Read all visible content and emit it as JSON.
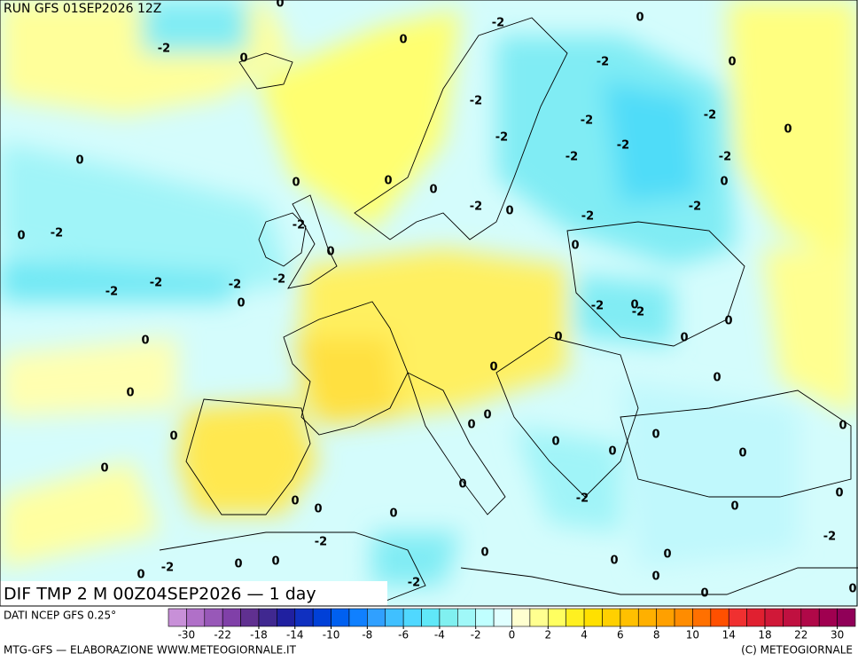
{
  "header": {
    "run": "RUN GFS 01SEP2026 12Z"
  },
  "map": {
    "title": "DIF TMP 2 M 00Z04SEP2026 — 1 day",
    "contour_labels": [
      "-2",
      "-2",
      "0",
      "0",
      "0",
      "-2",
      "0",
      "-2",
      "-2",
      "-2",
      "0",
      "-2",
      "-2",
      "-2",
      "-2",
      "0",
      "0",
      "0",
      "0",
      "0",
      "-2",
      "0",
      "-2",
      "-2",
      "-2",
      "0",
      "-2",
      "0",
      "0",
      "-2",
      "-2",
      "-2",
      "-2",
      "0",
      "-2",
      "0",
      "-2",
      "0",
      "0",
      "0",
      "0",
      "0",
      "0",
      "0",
      "0",
      "0",
      "0",
      "0",
      "0",
      "0",
      "0",
      "0",
      "0",
      "0",
      "0",
      "-2",
      "0",
      "0",
      "0",
      "0",
      "-2",
      "-2",
      "0",
      "0",
      "-2",
      "0",
      "0",
      "0",
      "0",
      "0",
      "-2",
      "0",
      "0",
      "0"
    ]
  },
  "footer": {
    "source": "DATI NCEP GFS 0.25°",
    "credit": "MTG-GFS — ELABORAZIONE WWW.METEOGIORNALE.IT",
    "copyright": "(C) METEOGIORNALE"
  },
  "colorbar": {
    "ticks": [
      -30,
      -22,
      -18,
      -14,
      -10,
      -8,
      -6,
      -4,
      -2,
      0,
      2,
      4,
      6,
      8,
      10,
      14,
      18,
      22,
      30
    ],
    "colors": [
      "#c890d8",
      "#b070c8",
      "#9858b8",
      "#8040a8",
      "#603090",
      "#402890",
      "#2020a0",
      "#1030c0",
      "#0040d8",
      "#0060f0",
      "#1080ff",
      "#30a0ff",
      "#40c0ff",
      "#50d8ff",
      "#60e8f8",
      "#80f0f0",
      "#a0f8f8",
      "#c0ffff",
      "#e0ffff",
      "#ffffd0",
      "#ffff90",
      "#ffff60",
      "#fff020",
      "#ffe000",
      "#ffd000",
      "#ffc000",
      "#ffb000",
      "#ffa000",
      "#ff8c00",
      "#ff7000",
      "#ff5000",
      "#f03030",
      "#e02030",
      "#d01838",
      "#c01040",
      "#b00848",
      "#a00050",
      "#900058"
    ]
  }
}
